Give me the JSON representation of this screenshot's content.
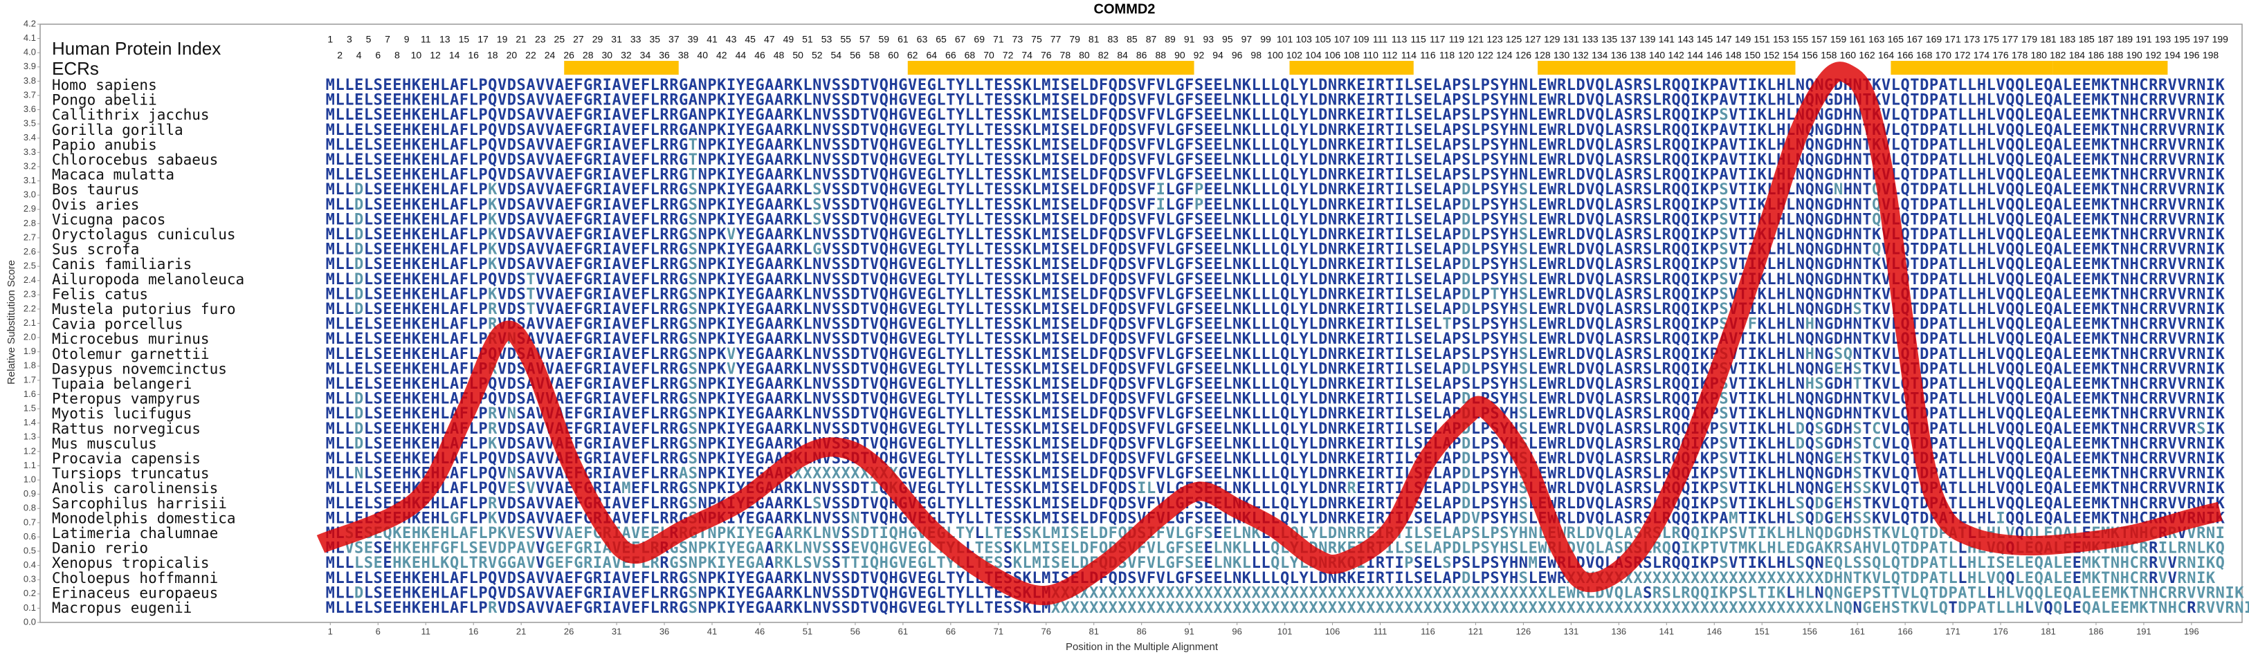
{
  "chart_data": {
    "type": "line",
    "title": "COMMD2",
    "y_label": "Relative Substitution Score",
    "x_label": "Position in the Multiple Alignment",
    "index_label": "Human Protein Index",
    "ecr_label": "ECRs",
    "positions": [
      1,
      2,
      3,
      4,
      5,
      6,
      7,
      8,
      9,
      10,
      11,
      12,
      13,
      14,
      15,
      16,
      17,
      18,
      19,
      20,
      21,
      22,
      23,
      24,
      25,
      26,
      27,
      28,
      29,
      30,
      31,
      32,
      33,
      34,
      35,
      36,
      37,
      38,
      39,
      40,
      41,
      42,
      43,
      44,
      45,
      46,
      47,
      48,
      49,
      50,
      51,
      52,
      53,
      54,
      55,
      56,
      57,
      58,
      59,
      60,
      61,
      62,
      63,
      64,
      65,
      66,
      67,
      68,
      69,
      70,
      71,
      72,
      73,
      74,
      75,
      76,
      77,
      78,
      79,
      80,
      81,
      82,
      83,
      84,
      85,
      86,
      87,
      88,
      89,
      90,
      91,
      92,
      93,
      94,
      95,
      96,
      97,
      98,
      99,
      100,
      101,
      102,
      103,
      104,
      105,
      106,
      107,
      108,
      109,
      110,
      111,
      112,
      113,
      114,
      115,
      116,
      117,
      118,
      119,
      120,
      121,
      122,
      123,
      124,
      125,
      126,
      127,
      128,
      129,
      130,
      131,
      132,
      133,
      134,
      135,
      136,
      137,
      138,
      139,
      140,
      141,
      142,
      143,
      144,
      145,
      146,
      147,
      148,
      149,
      150,
      151,
      152,
      153,
      154,
      155,
      156,
      157,
      158,
      159,
      160,
      161,
      162,
      163,
      164,
      165,
      166,
      167,
      168,
      169,
      170,
      171,
      172,
      173,
      174,
      175,
      176,
      177,
      178,
      179,
      180,
      181,
      182,
      183,
      184,
      185,
      186,
      187,
      188,
      189,
      190,
      191,
      192,
      193,
      194,
      195,
      196,
      197,
      198,
      199
    ],
    "ecrs": [
      [
        26,
        37
      ],
      [
        62,
        91
      ],
      [
        102,
        114
      ],
      [
        128,
        154
      ],
      [
        165,
        181
      ],
      [
        182,
        193
      ]
    ],
    "ecr_color": "#ffc000",
    "conserved_color": "#1f3c99",
    "variant_color": "#5b95a8",
    "alignment": [
      {
        "species": "Homo sapiens",
        "sequence": "MLLELSEEHKEHLAFLPQVDSAVVAEFGRIAVEFLRRGANPKIYEGAARKLNVSSDTVQHGVEGLTYLLTESSKLMISELDFQDSVFVLGFSEELNKLLLQLYLDNRKEIRTILSELAPSLPSYHNLEWRLDVQLASRSLRQQIKPAVTIKLHLNQNGDHNTKVLQTDPATLLHLVQQLEQALEEMKTNHCRRVVRNIK"
      },
      {
        "species": "Pongo abelii",
        "sequence": "MLLELSEEHKEHLAFLPQVDSAVVAEFGRIAVEFLRRGANPKIYEGAARKLNVSSDTVQHGVEGLTYLLTESSKLMISELDFQDSVFVLGFSEELNKLLLQLYLDNRKEIRTILSELAPSLPSYHNLEWRLDVQLASRSLRQQIKPAVTIKLHLNQNGDHNTKVLQTDPATLLHLVQQLEQALEEMKTNHCRRVVRNIK"
      },
      {
        "species": "Callithrix jacchus",
        "sequence": "MLLELSEEHKEHLAFLPQVDSAVVAEFGRIAVEFLRRGANPKIYEGAARKLNVSSDTVQHGVEGLTYLLTESSKLMISELDFQDSVFVLGFSEELNKLLLQLYLDNRKEIRTILSELAPSLPSYHNLEWRLDVQLASRSLRQQIKPSVTIKLHLNQNGDHNTKVLQTDPATLLHLVQQLEQALEEMKTNHCRRVVRNIK"
      },
      {
        "species": "Gorilla gorilla",
        "sequence": "MLLELSEEHKEHLAFLPQVDSAVVAEFGRIAVEFLRRGANPKIYEGAARKLNVSSDTVQHGVEGLTYLLTESSKLMISELDFQDSVFVLGFSEELNKLLLQLYLDNRKEIRTILSELAPSLPSYHNLEWRLDVQLASRSLRQQIKPAVTIKLHLNQNGDHNTKVLQTDPATLLHLVQQLEQALEEMKTNHCRRVVRNIK"
      },
      {
        "species": "Papio anubis",
        "sequence": "MLLELSEEHKEHLAFLPQVDSAVVAEFGRIAVEFLRRGTNPKIYEGAARKLNVSSDTVQHGVEGLTYLLTESSKLMISELDFQDSVFVLGFSEELNKLLLQLYLDNRKEIRTILSELAPSLPSYHNLEWRLDVQLASRSLRQQIKPAVTIKLHLNQNGDHNTKVLQTDPATLLHLVQQLEQALEEMKTNHCRRVVRNIK"
      },
      {
        "species": "Chlorocebus sabaeus",
        "sequence": "MLLELSEEHKEHLAFLPQVDSAVVAEFGRIAVEFLRRGTNPKIYEGAARKLNVSSDTVQHGVEGLTYLLTESSKLMISELDFQDSVFVLGFSEELNKLLLQLYLDNRKEIRTILSELAPSLPSYHNLEWRLDVQLASRSLRQQIKPAVTIKLHLNQNGDHNTKVLQTDPATLLHLVQQLEQALEEMKTNHCRRVVRNIK"
      },
      {
        "species": "Macaca mulatta",
        "sequence": "MLLELSEEHKEHLAFLPQVDSAVVAEFGRIAVEFLRRGTNPKIYEGAARKLNVSSDTVQHGVEGLTYLLTESSKLMISELDFQDSVFVLGFSEELNKLLLQLYLDNRKEIRTILSELAPSLPSYHNLEWRLDVQLASRSLRQQIKPAVTIKLHLNQNGDHNTKVLQTDPATLLHLVQQLEQALEEMKTNHCRRVVRNIK"
      },
      {
        "species": "Bos taurus",
        "sequence": "MLLDLSEEHKEHLAFLPKVDSAVVAEFGRIAVEFLRRGSNPKIYEGAARKLSVSSDTVQHGVEGLTYLLTESSKLMISELDFQDSVFILGFPEELNKLLLQLYLDNRKEIRTILSELAPDLPSYHSLEWRLDVQLASRSLRQQIKPSVTIKLHLNQNGNHNTQVLQTDPATLLHLVQQLEQALEEMKTNHCRRVVRNIK"
      },
      {
        "species": "Ovis aries",
        "sequence": "MLLDLSEEHKEHLAFLPKVDSAVVAEFGRIAVEFLRRGSNPKIYEGAARKLSVSSDTVQHGVEGLTYLLTESSKLMISELDFQDSVFILGFPEELNKLLLQLYLDNRKEIRTILSELAPDLPSYHSLEWRLDVQLASRSLRQQIKPSVTIKLHLNQNGDHNTQVLQTDPATLLHLVQQLEQALEEMKTNHCRRVVRNIK"
      },
      {
        "species": "Vicugna pacos",
        "sequence": "MLLDLSEEHKEHLAFLPKVDSAVVAEFGRIAVEFLRRGSNPKIYEGAARKLSVSSDTVQHGVEGLTYLLTESSKLMISELDFQDSVFVLGFSEELNKLLLQLYLDNRKEIRTILSELAPDLPSYHSLEWRLDVQLASRSLRQQIKPSVTIKLHLNQNGDHNTQVLQTDPATLLHLVQQLEQALEEMKTNHCRRVVRNIK"
      },
      {
        "species": "Oryctolagus cuniculus",
        "sequence": "MLLDLSEEHKEHLAFLPKVDSAVVAEFGRIAVEFLRRGSNPKVYEGAARKLNVSSDTVQHGVEGLTYLLTESSKLMISELDFQDSVFVLGFSEELNKLLLQLYLDNRKEIRTILSELAPDLPSYHSLEWRLDVQLASRSLRQQIKPSVTIKLHLNQNGDHNTKVLQTDPATLLHLVQQLEQALEEMKTNHCRRVVRNIK"
      },
      {
        "species": "Sus scrofa",
        "sequence": "MLLDLSEEHKEHLAFLPKVDSAVVAEFGRIAVEFLRRGSNPKIYEGAARKLGVSSDTVQHGVEGLTYLLTESSKLMISELDFQDSVFVLGFSEELNKLLLQLYLDNRKEIRTILSELAPDLPSYHSLEWRLDVQLASRSLRQQIKPSVTIKLHLNQNGDHNTQVLQTDPATLLHLVQQLEQALEEMKTNHCRRVVRNIK"
      },
      {
        "species": "Canis familiaris",
        "sequence": "MLLDLSEEHKEHLAFLPKVDSAVVAEFGRIAVEFLRRGSNPKIYEGAARKLNVSSDTVQHGVEGLTYLLTESSKLMISELDFQDSVFVLGFSEELNKLLLQLYLDNRKEIRTILSELAPDLPSYHSLEWRLDVQLASRSLRQQIKPSVTIKLHLNQNGDHNTKVLQTDPATLLHLVQQLEQALEEMKTNHCRRVVRNIK"
      },
      {
        "species": "Ailuropoda melanoleuca",
        "sequence": "MLLDLSEEHKEHLAFLPQVDSTVVAEFGRIAVEFLRRGSNPKIYEGAARKLNVSSDTVQHGVEGLTYLLTESSKLMISELDFQDSVFVLGFSEELNKLLLQLYLDNRKEIRTILSELAPDLPSYHSLEWRLDVQLASRSLRQQIKPSVTIKLHLNQNGDHNTKVLQTDPATLLHLVQQLEQALEEMKTNHCRRVVRNIK"
      },
      {
        "species": "Felis catus",
        "sequence": "MLLDLSEEHKEHLAFLPKVDSTVVAEFGRIAVEFLRRGSNPKIYEGAARKLNVSSDTVQHGVEGLTYLLTESSKLMISELDFQDSVFVLGFSEELNKLLLQLYLDNRKEIRTILSELAPDLPTYHSLEWRLDVQLASRSLRQQIKPSVTIKLHLNQNGDHNTKVLQTDPATLLHLVQQLEQALEEMKTNHCRRVVRNIK"
      },
      {
        "species": "Mustela putorius furo",
        "sequence": "MLLDLSEEHKEHLAFLPRVDSTVVAEFGRIAVEFLRRGSNPKIYEGAARKLNVSSDTVQHGVEGLTYLLTESSKLMISELDFQDSVFVLGFSEELNKLLLQLYLDNRKEIRTILSELAPDLPSYHSLEWRLDVQLASRSLRQQIKPSVTIKLHLNQNGDHSTKVLQTDPATLLHLVQQLEQALEEMKTNHCRRVVRNIK"
      },
      {
        "species": "Cavia porcellus",
        "sequence": "MLLELSEEHKEHLAFLPRVDSAVVAEFGRIAVEFLRRGSNPKIYEGAARKLNVSSDTVQHGVEGLTYLLTESSKLMISELDFQDSVFVLGFSEELNKLLLQLYLDNRKEIRTILSELTPSLPSYHSLEWRLDVQLASRSLRQQIKPSVTFKLHLNHNGDHNTKVLQTDPATLLHLVQQLEQALEEMKTNHCRRVVRNIK"
      },
      {
        "species": "Microcebus murinus",
        "sequence": "MLLELSEEHKEHLAFLPRVNSAVVAEFGRIAVEFLRRGSNPKIYEGAARKLNVSSDTVQHGVEGLTYLLTESSKLMISELDFQDSVFVLGFSEELNKLLLQLYLDNRKEIRTILSELAPSLPSYHSLEWRLDVQLASRSLRQQIKPAVTIKLHLNQNGDHNTKVLQTDPATLLHLVQQLEQALEEMKTNHCRRVVRNIK"
      },
      {
        "species": "Otolemur garnettii",
        "sequence": "MLLELSEEHKEHLAFLPQVDSAVVAEFGRIAVEFLRRGSNPKVYEGAARKLNVSSDTVQHGVEGLTYLLTESSKLMISELDFQDSVFVLGFSEELNKLLLQLYLDNRKEIRTILSELAPSLPSYHSLEWRLDVQLASRSLRQQIKPSVTIKLHLNHNGSQNTKVLQTDPATLLHLVQQLEQALEEMKTNHCRRVVRNIK"
      },
      {
        "species": "Dasypus novemcinctus",
        "sequence": "MLLELSEEHKEHLAFLPRVDSAVVAEFGRIAVEFLRRGSNPKVYEGAARKLNVSSDTVQHGVEGLTYLLTESSKLMISELDFQDSVFVLGFSEELNKLLLQLYLDNRKEIRTILSELAPDLPSYHSLEWRLDVQLASRSLRQQIKPSVTIKLHLNQNGEHSTKVLQTDPATLLHLVQQLEQALEEMKTNHCRRVVRNIK"
      },
      {
        "species": "Tupaia belangeri",
        "sequence": "MLLELSEEHKEHLAFLPQVDSAVVAEFGRIAVEFLRRGSNPKIYEGAARKLNVSSDTVQHGVEGLTYLLTESSKLMISELDFQDSVFVLGFSEELNKLLLQLYLDNRKEIRTILSELAPSLPSYHSLEWRLDVQLASRSLRQQIKPSVTIKLHLNHSGDHTTKVLQTDPATLLHLVQQLEQALEEMKTNHCRRVVRNIK"
      },
      {
        "species": "Pteropus vampyrus",
        "sequence": "MLLDLSEEHKEHLAFLPQVDSAVVAEFGRIAVEFLRRGSNPKIYEGAARKLNVSSDTVQHGVEGLTYLLTESSKLMISELDFQDSVFVLGFSEELNKLLLQLYLDNRKEIRTILSELAPDLPSYHSLEWRLDVQLASRSLRQQIKPSVTIKLHLNQNGDHNTKVLQTDPATLLHLVQQLEQALEEMKTNHCRRVVRNIK"
      },
      {
        "species": "Myotis lucifugus",
        "sequence": "MLLDLSEEHKEHLAFLPRVNSAVVAEFGRIAVEFLRRGSNPKIYEGAARKLNVSSDTVQHGVEGLTYLLTESSKLMISELDFQDSVFVLGFSEELNKLLLQLYLDNRKEIRTILSELAPDLPSYHSLEWRLDVQLASRSLRQQIKPSVTIKLHLNQNGDHNTKVLQTDPATLLHLVQQLEQALEEMKTNHCRRVVRNIK"
      },
      {
        "species": "Rattus norvegicus",
        "sequence": "MLLDLSEEHKEHLAFLPRVDSAVVAEFGRIAVEFLRRGSNPKIYEGAARKLNVSSDTVQHGVEGLTYLLTESSKLMISELDFQDSVFVLGFSEELNKLLLQLYLDNRKEIRTILSELAPDLPSYHSLEWRLDVQLASRSLRQQIKPSVTIKLHLDQSGDHSTCVLQTDPATLLHLVQQLEQALEEMKTNHCRRVVRSIK"
      },
      {
        "species": "Mus musculus",
        "sequence": "MLLDLSEEHKEHLAFLPKVDSAVVAEFGRIAVEFLRRGSNPKIYEGAARKLNVSSDTVQHGVEGLTYLLTESSKLMISELDFQDSVFVLGFSEELNKLLLQLYLDNRKEIRTILSELAPDLPSYHSLEWRLDVQLASRSLRQQIKPSVTIKLHLDQSGDHSTCVLQTDPATLLHLVQQLEQALEEMKTNHCRRVVRNIK"
      },
      {
        "species": "Procavia capensis",
        "sequence": "MLLELSEEHKEHLAFLPQVDSAVVAEFGRIAVEFLRRGSNPKIYEGAARKLNVSSDTVQHGVEGLTYLLTESSKLMISELDFQDSVFVLGFSEELNKLLLQLYLDNRKEIRTILSELAPDLPSYHSLEWRLDVQLASRSLRQQIKPSVTIKLHLNQNGEHSTKVLQTDPATLLHLVQQLEQALEEMKTNHCRRVVRNIK"
      },
      {
        "species": "Tursiops truncatus",
        "sequence": "MLLNLSEEHKEHLAFLPQVNSAVVAEFGRIAVEFLRRASNPKIYEGAARXXXXXXXXXXXGVEGLTYLLTESSKLMISELDFQDSVFVLGFSEELNKLLLQLYLDNRKEIRTILSELAPDLPSYHSLEWRLDVQLASRSLRQQIKPSVTIKLHLNQNGDHSTKVLQTDPATLLHLVQQLEQALEEMKTNHCRRVVRNIK"
      },
      {
        "species": "Anolis carolinensis",
        "sequence": "MLLELSEEHKEHLAFLPQVESVVVAEFGRIAMEFLRRGSNPKIYEGAARKLNVSSDTIQKGVEGLTYLLTESSKLMISELDFQDSILVLGFSEELNKLLLQLYLDNRREIRTILSELAPDLPSYHSLEWRLDVQLASRSLRQQIKPSVTIKLHLNQNGEHSSKVLQTDPATLLHLVQQLEQALEEMKTNHCRRVVRNIK"
      },
      {
        "species": "Sarcophilus harrisii",
        "sequence": "MLLELSEEHKEHLAFLPRVDSAVVAEFGRIAVEFLRRGSNPKIYEGAARKLSVSSDTVQHGVEGLTYLLTESSKLMISELDFQDSVFVLGFSEELNKLLLQLYLDNRKEIRTILSELAPDLPSYHSLEWRLDVQLASRSLRQQIKPSVTIKLHLSQDGEHSTKVLQTDPATLLHLVQQLEQALEEMKTNHCRRVVRNIK"
      },
      {
        "species": "Monodelphis domestica",
        "sequence": "MLLELSEEHKEHLGFLPKVDSAVVAEFGRIAVEFLRRGSNPKIYEGAARKLNVSSNTVQHGVEGLTYLLTESSKLMISELDFQDSVFVLGFSEELNKLLLQLYLDNRKEIRTILSELAPDVPSYHSLEWRLDVQLASRSLRQQIKPAMTIKLHLSQDGEHSSKVLQTDPATLLHLIQQLEQALEEMKTNHCRRVVRNIK"
      },
      {
        "species": "Latimeria chalumnae",
        "sequence": "MLSESEQKEHKEHLAFLPKVESVVVAEFGRIAVEFLRRGTNPKIYEGAARKLNVSSDTIQHGVEGLTYLLTESSKLMISELDFQDSIFVLGFSEELNKLLLQLYLDNRREIRTILSELAPSLPSYHNLEWRLDVQLASRSLRQQIKPSVTIKLHLNQDGDHSTKVLQTDPATLLHLVQQLEQALEEMKTNHCRRVVRNI"
      },
      {
        "species": "Danio rerio",
        "sequence": "MLVSESEHKEHFGFLSEVDPAVVGEFGRIAVEFLRRGSNPKIYEGAARKLNVSSSEVQHGVEGLTYLLTESSKLMISELDFQDSVFVLGFSEELNKLLLQLYLDNRKEIRTILSELAPDLPSYHSLEWRLDVQLASRSLRQQIKPTVTMKLHLEDGAKRSAHVLQTDPATLLHLVQQLEQALEEMKTNHCRRILRNLKQ"
      },
      {
        "species": "Xenopus tropicalis",
        "sequence": "MLLLSEEHKEHLKQLTRVGGAVVGEFGRIAVEFLRRGSNPKIYEGAARKLSVSSTTIQHGVEGLTYLLTESSKLMISELDFQDSVFVLGFSEELNKLLLQLYLDNRKQIIRTIPSELSPSLPSYHNMEWRLDVQLASRSLRQQIKPSVTIKLHLSQNEQLSSQLQTDPATLLHLISELEQALEEMKTNHCRRVVRNIKQ"
      },
      {
        "species": "Choloepus hoffmanni",
        "sequence": "MLLELSEEHKEHLAFLPQVDSAVVAEFGRIAVEFLRRGSNPKIYEGAARKLNVSSDTVQHGVEGLTYLLTESSKLMISELDFQDSVFVLGFSEELNKLLLQLYLDNRKEIRTILSELAPDLPSYHSLEWRXXXXXXXXXXXXXXXXXXXXXXXXXXXDHNTKVLQTDPATLLHLVQQLEQALEEMKTNHCRRVVRNIK"
      },
      {
        "species": "Erinaceus europaeus",
        "sequence": "MLLDLSEEHKEHLAFLPQVDSAVVAEFGRIAVEFLRRGSNPKIYEGAARKLNVSSDTVQHGVEGLTYLLTESSKLMXXXXXXXXXXXXXXXXXXXXXXXXXXXXXXXXXXXXXXXXXXXXXXXXXXXXLEWRLDVQLASRSLRQQIKPSLTIKLHLNQNGEPSTTVLQTDPATLLHLVQQLEQALEEMKTNHCRRVVRNIK"
      },
      {
        "species": "Macropus eugenii",
        "sequence": "MLLELSEEHKEHLAFLPRVDSAVVAEFGRIAVEFLRRGSNPKIYEGAARKLNVSSDTVQHGVEGLTYLLTESSKLMXXXXXXXXXXXXXXXXXXXXXXXXXXXXXXXXXXXXXXXXXXXXXXXXXXXXXXXXXXXXXXXXXXXXXXXXXXXXXXXXXLNQNGEHSTKVLQTDPATLLHLVQQLEQALEEMKTNHCRRVVRNIK"
      }
    ],
    "curve": {
      "color": "#dd0000",
      "x": [
        0,
        10,
        15,
        19,
        22,
        26,
        30,
        33,
        38,
        44,
        50,
        54,
        58,
        64,
        70,
        76,
        82,
        88,
        92,
        96,
        100,
        104,
        107,
        112,
        116,
        120,
        122,
        126,
        130,
        133,
        138,
        143,
        148,
        152,
        155,
        158,
        160,
        162,
        164,
        166,
        168,
        170,
        173,
        178,
        184,
        190,
        196,
        199
      ],
      "values": [
        0.55,
        0.85,
        1.45,
        2.03,
        1.85,
        1.15,
        0.65,
        0.48,
        0.65,
        0.85,
        1.15,
        1.23,
        1.1,
        0.65,
        0.34,
        0.19,
        0.4,
        0.75,
        0.92,
        0.8,
        0.66,
        0.46,
        0.42,
        0.64,
        1.15,
        1.45,
        1.5,
        1.15,
        0.5,
        0.28,
        0.5,
        1.15,
        2.05,
        2.86,
        3.46,
        3.82,
        3.85,
        3.67,
        3.06,
        2.05,
        1.15,
        0.75,
        0.6,
        0.54,
        0.56,
        0.62,
        0.73,
        0.78
      ]
    },
    "xlim": [
      -29.4,
      201.3
    ],
    "xticks": [
      1,
      6,
      11,
      16,
      21,
      26,
      31,
      36,
      41,
      46,
      51,
      56,
      61,
      66,
      71,
      76,
      81,
      86,
      91,
      96,
      101,
      106,
      111,
      116,
      121,
      126,
      131,
      136,
      141,
      146,
      151,
      156,
      161,
      166,
      171,
      176,
      181,
      186,
      191,
      196
    ],
    "ylim": [
      0,
      4.2
    ],
    "yticks": [
      {
        "value": 0,
        "label": "0.0"
      },
      0.1,
      0.2,
      0.3,
      0.4,
      0.5,
      0.6,
      0.7,
      0.8,
      0.9,
      {
        "value": 1,
        "label": "1.0"
      },
      1.1,
      1.2,
      1.3,
      1.4,
      1.5,
      1.6,
      1.7,
      1.8,
      1.9,
      {
        "value": 2,
        "label": "2.0"
      },
      2.1,
      2.2,
      2.3,
      2.4,
      2.5,
      2.6,
      2.7,
      2.8,
      2.9,
      {
        "value": 3,
        "label": "3.0"
      },
      3.1,
      3.2,
      3.3,
      3.4,
      3.5,
      3.6,
      3.7,
      3.8,
      3.9,
      {
        "value": 4,
        "label": "4.0"
      },
      4.1,
      4.2
    ]
  }
}
